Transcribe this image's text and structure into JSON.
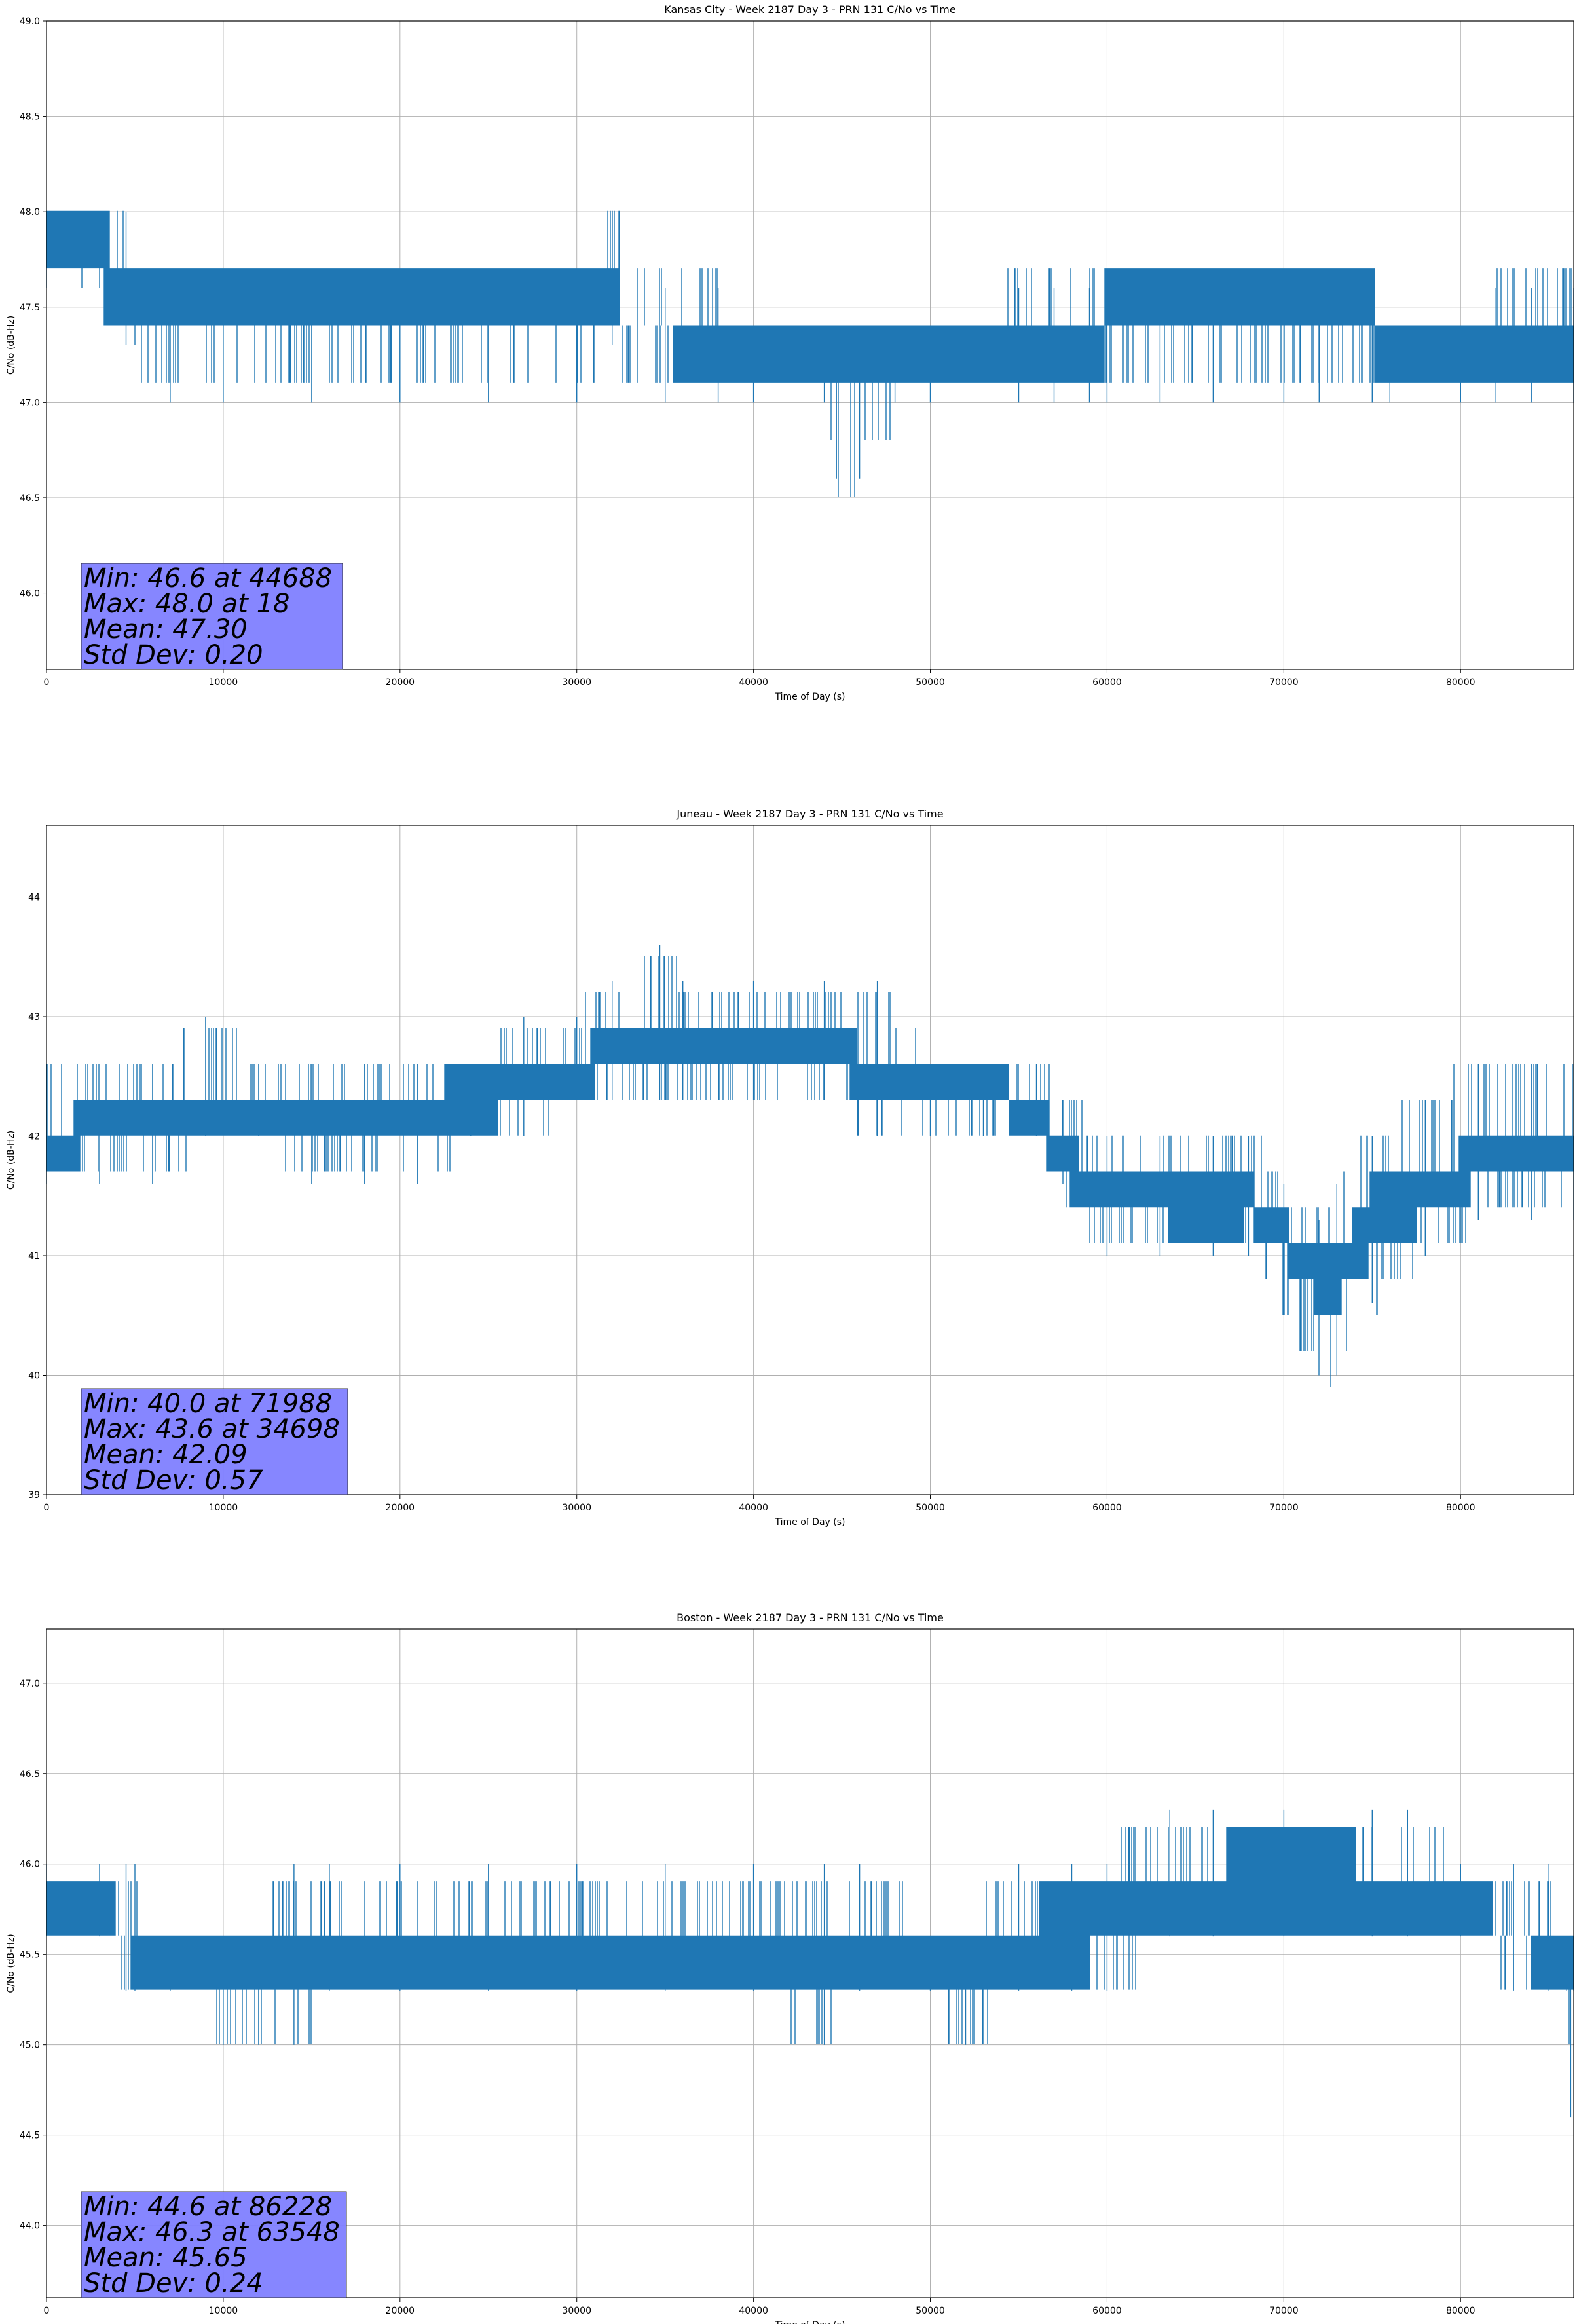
{
  "chart_data": [
    {
      "type": "line",
      "title": "Kansas City - Week 2187 Day 3 - PRN 131 C/No vs Time",
      "xlabel": "Time of Day (s)",
      "ylabel": "C/No (dB-Hz)",
      "xlim": [
        0,
        86400
      ],
      "ylim": [
        45.6,
        49.0
      ],
      "xticks": [
        "0",
        "10000",
        "20000",
        "30000",
        "40000",
        "50000",
        "60000",
        "70000",
        "80000"
      ],
      "yticks": [
        "46.0",
        "46.5",
        "47.0",
        "47.5",
        "48.0",
        "48.5",
        "49.0"
      ],
      "grid": true,
      "color": "#1f77b4",
      "stats": [
        "Min: 46.6 at 44688",
        "Max: 48.0 at 18",
        "Mean: 47.30",
        "Std Dev: 0.20"
      ],
      "stats_box_color": "#7f7fff",
      "series": [
        {
          "x": [
            0,
            2000,
            3000,
            4500,
            5000,
            7000,
            10000,
            15000,
            20000,
            25000,
            30000,
            32000,
            35000,
            38000,
            40000,
            44000,
            44688,
            46000,
            48000,
            50000,
            55000,
            57000,
            59000,
            60000,
            63000,
            66000,
            70000,
            72000,
            75000,
            76000,
            80000,
            82000,
            84000,
            86400
          ],
          "low": [
            47.6,
            47.6,
            47.6,
            47.3,
            47.3,
            47.0,
            47.0,
            47.0,
            47.0,
            47.0,
            47.0,
            47.3,
            47.0,
            47.0,
            47.0,
            47.0,
            46.6,
            46.6,
            47.0,
            47.0,
            47.0,
            47.0,
            47.0,
            47.0,
            47.0,
            47.0,
            47.0,
            47.0,
            47.0,
            47.0,
            47.0,
            47.0,
            47.0,
            47.0
          ],
          "high": [
            48.0,
            48.0,
            48.0,
            48.0,
            47.6,
            47.6,
            47.6,
            47.6,
            47.6,
            47.6,
            47.6,
            48.0,
            47.6,
            47.6,
            47.3,
            47.3,
            47.3,
            47.3,
            47.3,
            47.3,
            47.6,
            47.6,
            47.6,
            47.6,
            47.6,
            47.6,
            47.6,
            47.6,
            47.6,
            47.3,
            47.3,
            47.6,
            47.6,
            47.6
          ],
          "core_low": [
            47.6,
            47.6,
            47.6,
            47.3,
            47.3,
            47.3,
            47.3,
            47.3,
            47.3,
            47.3,
            47.3,
            47.3,
            47.3,
            47.0,
            47.0,
            47.0,
            47.0,
            47.0,
            47.0,
            47.0,
            47.0,
            47.0,
            47.0,
            47.3,
            47.3,
            47.3,
            47.3,
            47.3,
            47.3,
            47.0,
            47.0,
            47.0,
            47.0,
            47.0
          ],
          "core_high": [
            48.0,
            48.0,
            48.0,
            47.6,
            47.6,
            47.6,
            47.6,
            47.6,
            47.6,
            47.6,
            47.6,
            47.6,
            47.3,
            47.3,
            47.3,
            47.3,
            47.3,
            47.3,
            47.3,
            47.3,
            47.3,
            47.3,
            47.3,
            47.6,
            47.6,
            47.6,
            47.6,
            47.6,
            47.6,
            47.3,
            47.3,
            47.3,
            47.3,
            47.3
          ]
        }
      ]
    },
    {
      "type": "line",
      "title": "Juneau - Week 2187 Day 3 - PRN 131 C/No vs Time",
      "xlabel": "Time of Day (s)",
      "ylabel": "C/No (dB-Hz)",
      "xlim": [
        0,
        86400
      ],
      "ylim": [
        39.0,
        44.6
      ],
      "xticks": [
        "0",
        "10000",
        "20000",
        "30000",
        "40000",
        "50000",
        "60000",
        "70000",
        "80000"
      ],
      "yticks": [
        "39",
        "40",
        "41",
        "42",
        "43",
        "44"
      ],
      "grid": true,
      "color": "#1f77b4",
      "stats": [
        "Min: 40.0 at 71988",
        "Max: 43.6 at 34698",
        "Mean: 42.09",
        "Std Dev: 0.57"
      ],
      "stats_box_color": "#7f7fff",
      "series": [
        {
          "x": [
            0,
            3000,
            6000,
            9000,
            12000,
            15000,
            18000,
            21000,
            24000,
            27000,
            30000,
            32000,
            34698,
            36000,
            40000,
            44000,
            47000,
            50000,
            53000,
            56000,
            57500,
            60000,
            63000,
            66000,
            68000,
            70000,
            71988,
            73000,
            75000,
            78000,
            81000,
            84000,
            86400
          ],
          "low": [
            41.6,
            41.6,
            41.6,
            42.0,
            42.0,
            41.6,
            41.6,
            41.6,
            42.0,
            42.0,
            42.3,
            42.3,
            42.3,
            42.3,
            42.3,
            42.3,
            42.0,
            42.0,
            42.0,
            42.0,
            41.6,
            41.0,
            41.0,
            41.0,
            41.0,
            40.6,
            40.0,
            40.0,
            40.6,
            41.0,
            41.3,
            41.3,
            41.3
          ],
          "high": [
            42.6,
            42.6,
            42.6,
            43.0,
            42.6,
            42.6,
            42.6,
            42.6,
            42.6,
            43.0,
            43.0,
            43.3,
            43.6,
            43.3,
            43.3,
            43.3,
            43.3,
            42.6,
            42.6,
            42.6,
            42.3,
            42.0,
            42.0,
            42.0,
            42.0,
            41.6,
            41.3,
            41.6,
            42.0,
            42.3,
            42.6,
            42.6,
            42.6
          ],
          "core_low": [
            41.6,
            42.0,
            42.0,
            42.0,
            42.0,
            42.0,
            42.0,
            42.0,
            42.0,
            42.3,
            42.3,
            42.6,
            42.6,
            42.6,
            42.6,
            42.6,
            42.3,
            42.3,
            42.3,
            42.0,
            41.6,
            41.3,
            41.3,
            41.0,
            41.3,
            41.0,
            40.6,
            40.6,
            41.0,
            41.3,
            41.6,
            41.6,
            41.6
          ],
          "core_high": [
            42.0,
            42.3,
            42.3,
            42.3,
            42.3,
            42.3,
            42.3,
            42.3,
            42.6,
            42.6,
            42.6,
            43.0,
            43.0,
            43.0,
            43.0,
            43.0,
            42.6,
            42.6,
            42.6,
            42.3,
            42.0,
            41.6,
            41.6,
            41.6,
            41.6,
            41.3,
            41.0,
            41.0,
            41.6,
            41.6,
            42.0,
            42.0,
            42.0
          ]
        }
      ]
    },
    {
      "type": "line",
      "title": "Boston - Week 2187 Day 3 - PRN 131 C/No vs Time",
      "xlabel": "Time of Day (s)",
      "ylabel": "C/No (dB-Hz)",
      "xlim": [
        0,
        86400
      ],
      "ylim": [
        43.6,
        47.3
      ],
      "xticks": [
        "0",
        "10000",
        "20000",
        "30000",
        "40000",
        "50000",
        "60000",
        "70000",
        "80000"
      ],
      "yticks": [
        "44.0",
        "44.5",
        "45.0",
        "45.5",
        "46.0",
        "46.5",
        "47.0"
      ],
      "grid": true,
      "color": "#1f77b4",
      "stats": [
        "Min: 44.6 at 86228",
        "Max: 46.3 at 63548",
        "Mean: 45.65",
        "Std Dev: 0.24"
      ],
      "stats_box_color": "#7f7fff",
      "series": [
        {
          "x": [
            0,
            3000,
            4500,
            5000,
            7000,
            10000,
            12000,
            14000,
            16000,
            20000,
            25000,
            30000,
            35000,
            40000,
            44000,
            46000,
            50000,
            52000,
            55000,
            58000,
            60000,
            63548,
            66000,
            70000,
            75000,
            77000,
            80000,
            83000,
            85000,
            86000,
            86228,
            86400
          ],
          "low": [
            45.6,
            45.6,
            45.3,
            45.3,
            45.3,
            45.0,
            45.0,
            45.0,
            45.3,
            45.3,
            45.3,
            45.3,
            45.3,
            45.3,
            45.0,
            45.3,
            45.3,
            45.0,
            45.3,
            45.3,
            45.3,
            45.6,
            45.6,
            45.6,
            45.6,
            45.6,
            45.6,
            45.3,
            45.3,
            45.3,
            44.6,
            45.3
          ],
          "high": [
            46.0,
            46.0,
            46.0,
            46.0,
            45.6,
            45.6,
            45.6,
            46.0,
            46.0,
            46.0,
            46.0,
            46.0,
            46.0,
            46.0,
            46.0,
            46.0,
            45.6,
            45.6,
            46.0,
            46.0,
            46.0,
            46.3,
            46.3,
            46.3,
            46.3,
            46.3,
            46.0,
            46.0,
            46.0,
            45.6,
            45.6,
            45.6
          ],
          "core_low": [
            45.6,
            45.6,
            45.6,
            45.3,
            45.3,
            45.3,
            45.3,
            45.3,
            45.3,
            45.3,
            45.3,
            45.3,
            45.3,
            45.3,
            45.3,
            45.3,
            45.3,
            45.3,
            45.3,
            45.3,
            45.6,
            45.6,
            45.6,
            45.6,
            45.6,
            45.6,
            45.6,
            45.6,
            45.3,
            45.3,
            45.3,
            45.3
          ],
          "core_high": [
            46.0,
            46.0,
            45.6,
            45.6,
            45.6,
            45.6,
            45.6,
            45.6,
            45.6,
            45.6,
            45.6,
            45.6,
            45.6,
            45.6,
            45.6,
            45.6,
            45.6,
            45.6,
            45.6,
            46.0,
            46.0,
            46.0,
            46.0,
            46.3,
            46.0,
            46.0,
            46.0,
            45.6,
            45.6,
            45.6,
            45.6,
            45.6
          ]
        }
      ]
    }
  ]
}
